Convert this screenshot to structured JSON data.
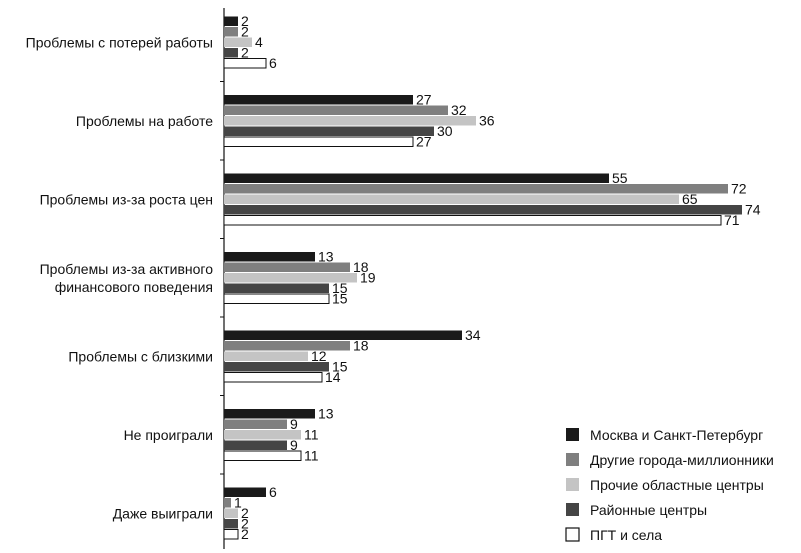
{
  "chart_data": {
    "type": "bar",
    "orientation": "horizontal",
    "categories": [
      [
        "Проблемы с потерей работы"
      ],
      [
        "Проблемы на работе"
      ],
      [
        "Проблемы из-за роста цен"
      ],
      [
        "Проблемы из-за активного",
        "финансового поведения"
      ],
      [
        "Проблемы с близкими"
      ],
      [
        "Не проиграли"
      ],
      [
        "Даже выиграли"
      ]
    ],
    "series": [
      {
        "name": "Москва и Санкт-Петербург",
        "color": "#1a1a1a",
        "stroke": "#1a1a1a",
        "values": [
          2,
          27,
          55,
          13,
          34,
          13,
          6
        ]
      },
      {
        "name": "Другие города-миллионники",
        "color": "#7f7f7f",
        "stroke": "#7f7f7f",
        "values": [
          2,
          32,
          72,
          18,
          18,
          9,
          1
        ]
      },
      {
        "name": "Прочие областные центры",
        "color": "#c4c4c4",
        "stroke": "#c4c4c4",
        "values": [
          4,
          36,
          65,
          19,
          12,
          11,
          2
        ]
      },
      {
        "name": "Районные центры",
        "color": "#454545",
        "stroke": "#454545",
        "values": [
          2,
          30,
          74,
          15,
          15,
          9,
          2
        ]
      },
      {
        "name": "ПГТ и села",
        "color": "#ffffff",
        "stroke": "#111111",
        "values": [
          6,
          27,
          71,
          15,
          14,
          11,
          2
        ]
      }
    ],
    "xlim": [
      0,
      80
    ],
    "grid": false,
    "legend_position": "bottom-right"
  }
}
